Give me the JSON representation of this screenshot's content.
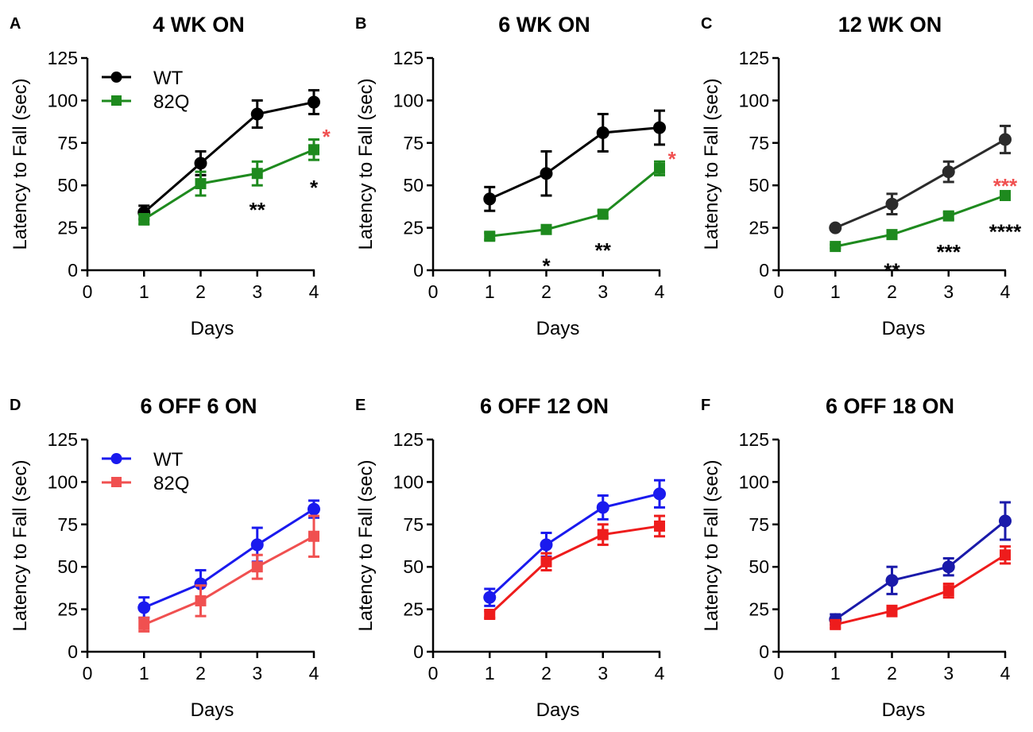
{
  "chart_data": [
    {
      "type": "line",
      "panel": "A",
      "title": "4 WK ON",
      "xlabel": "Days",
      "ylabel": "Latency to Fall (sec)",
      "xlim": [
        0,
        4
      ],
      "ylim": [
        0,
        125
      ],
      "xticks": [
        "0",
        "1",
        "2",
        "3",
        "4"
      ],
      "yticks": [
        "0",
        "25",
        "50",
        "75",
        "100",
        "125"
      ],
      "legend": true,
      "series": [
        {
          "name": "WT",
          "color": "#000000",
          "marker": "circle",
          "x": [
            1,
            2,
            3,
            4
          ],
          "values": [
            34,
            63,
            92,
            99
          ],
          "err": [
            4,
            7,
            8,
            7
          ]
        },
        {
          "name": "82Q",
          "color": "#1e8a1e",
          "marker": "square",
          "x": [
            1,
            2,
            3,
            4
          ],
          "values": [
            30,
            51,
            57,
            71
          ],
          "err": [
            3,
            7,
            7,
            6
          ]
        }
      ],
      "annotations": [
        {
          "text": "**",
          "color": "#000000",
          "x": 3,
          "y": 38
        },
        {
          "text": "*",
          "color": "#000000",
          "x": 4,
          "y": 51
        },
        {
          "text": "*",
          "color": "#f05050",
          "x": 4.22,
          "y": 81
        }
      ]
    },
    {
      "type": "line",
      "panel": "B",
      "title": "6 WK ON",
      "xlabel": "Days",
      "ylabel": "Latency to Fall (sec)",
      "xlim": [
        0,
        4
      ],
      "ylim": [
        0,
        125
      ],
      "xticks": [
        "0",
        "1",
        "2",
        "3",
        "4"
      ],
      "yticks": [
        "0",
        "25",
        "50",
        "75",
        "100",
        "125"
      ],
      "legend": false,
      "series": [
        {
          "name": "WT",
          "color": "#000000",
          "marker": "circle",
          "x": [
            1,
            2,
            3,
            4
          ],
          "values": [
            42,
            57,
            81,
            84
          ],
          "err": [
            7,
            13,
            11,
            10
          ]
        },
        {
          "name": "82Q",
          "color": "#1e8a1e",
          "marker": "square",
          "x": [
            1,
            2,
            3,
            4
          ],
          "values": [
            20,
            24,
            33,
            60
          ],
          "err": [
            2,
            2,
            2,
            4
          ]
        }
      ],
      "annotations": [
        {
          "text": "*",
          "color": "#000000",
          "x": 2,
          "y": 5
        },
        {
          "text": "**",
          "color": "#000000",
          "x": 3,
          "y": 14
        },
        {
          "text": "*",
          "color": "#f05050",
          "x": 4.22,
          "y": 68
        }
      ]
    },
    {
      "type": "line",
      "panel": "C",
      "title": "12 WK ON",
      "xlabel": "Days",
      "ylabel": "Latency to Fall (sec)",
      "xlim": [
        0,
        4
      ],
      "ylim": [
        0,
        125
      ],
      "xticks": [
        "0",
        "1",
        "2",
        "3",
        "4"
      ],
      "yticks": [
        "0",
        "25",
        "50",
        "75",
        "100",
        "125"
      ],
      "legend": false,
      "series": [
        {
          "name": "WT",
          "color": "#2b2b2b",
          "marker": "circle",
          "x": [
            1,
            2,
            3,
            4
          ],
          "values": [
            25,
            39,
            58,
            77
          ],
          "err": [
            1,
            6,
            6,
            8
          ]
        },
        {
          "name": "82Q",
          "color": "#1e8a1e",
          "marker": "square",
          "x": [
            1,
            2,
            3,
            4
          ],
          "values": [
            14,
            21,
            32,
            44
          ],
          "err": [
            1,
            2,
            2,
            2
          ]
        }
      ],
      "annotations": [
        {
          "text": "**",
          "color": "#000000",
          "x": 2,
          "y": 2
        },
        {
          "text": "***",
          "color": "#000000",
          "x": 3,
          "y": 13
        },
        {
          "text": "****",
          "color": "#000000",
          "x": 4,
          "y": 25
        },
        {
          "text": "***",
          "color": "#f05050",
          "x": 4,
          "y": 52
        }
      ]
    },
    {
      "type": "line",
      "panel": "D",
      "title": "6 OFF 6 ON",
      "xlabel": "Days",
      "ylabel": "Latency to Fall (sec)",
      "xlim": [
        0,
        4
      ],
      "ylim": [
        0,
        125
      ],
      "xticks": [
        "0",
        "1",
        "2",
        "3",
        "4"
      ],
      "yticks": [
        "0",
        "25",
        "50",
        "75",
        "100",
        "125"
      ],
      "legend": true,
      "series": [
        {
          "name": "WT",
          "color": "#1a1aee",
          "marker": "circle",
          "x": [
            1,
            2,
            3,
            4
          ],
          "values": [
            26,
            40,
            63,
            84
          ],
          "err": [
            6,
            8,
            10,
            5
          ]
        },
        {
          "name": "82Q",
          "color": "#f05050",
          "marker": "square",
          "x": [
            1,
            2,
            3,
            4
          ],
          "values": [
            16,
            30,
            50,
            68
          ],
          "err": [
            4,
            9,
            7,
            12
          ]
        }
      ],
      "annotations": []
    },
    {
      "type": "line",
      "panel": "E",
      "title": "6 OFF 12 ON",
      "xlabel": "Days",
      "ylabel": "Latency to Fall (sec)",
      "xlim": [
        0,
        4
      ],
      "ylim": [
        0,
        125
      ],
      "xticks": [
        "0",
        "1",
        "2",
        "3",
        "4"
      ],
      "yticks": [
        "0",
        "25",
        "50",
        "75",
        "100",
        "125"
      ],
      "legend": false,
      "series": [
        {
          "name": "WT",
          "color": "#1a1aee",
          "marker": "circle",
          "x": [
            1,
            2,
            3,
            4
          ],
          "values": [
            32,
            63,
            85,
            93
          ],
          "err": [
            5,
            7,
            7,
            8
          ]
        },
        {
          "name": "82Q",
          "color": "#ee1c1c",
          "marker": "square",
          "x": [
            1,
            2,
            3,
            4
          ],
          "values": [
            22,
            53,
            69,
            74
          ],
          "err": [
            2,
            5,
            6,
            6
          ]
        }
      ],
      "annotations": []
    },
    {
      "type": "line",
      "panel": "F",
      "title": "6 OFF 18 ON",
      "xlabel": "Days",
      "ylabel": "Latency to Fall (sec)",
      "xlim": [
        0,
        4
      ],
      "ylim": [
        0,
        125
      ],
      "xticks": [
        "0",
        "1",
        "2",
        "3",
        "4"
      ],
      "yticks": [
        "0",
        "25",
        "50",
        "75",
        "100",
        "125"
      ],
      "legend": false,
      "series": [
        {
          "name": "WT",
          "color": "#1a1aaa",
          "marker": "circle",
          "x": [
            1,
            2,
            3,
            4
          ],
          "values": [
            19,
            42,
            50,
            77
          ],
          "err": [
            3,
            8,
            5,
            11
          ]
        },
        {
          "name": "82Q",
          "color": "#ee1c1c",
          "marker": "square",
          "x": [
            1,
            2,
            3,
            4
          ],
          "values": [
            16,
            24,
            36,
            57
          ],
          "err": [
            2,
            3,
            4,
            5
          ]
        }
      ],
      "annotations": []
    }
  ]
}
